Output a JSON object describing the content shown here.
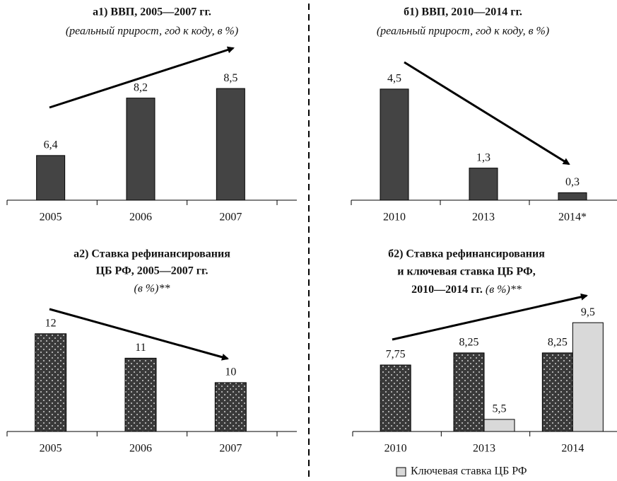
{
  "chart_data": [
    {
      "type": "bar",
      "title": [
        "а1) ВВП, 2005—2007 гг."
      ],
      "subtitle": "(реальный прирост, год к коду, в %)",
      "categories": [
        "2005",
        "2006",
        "2007"
      ],
      "values": [
        6.4,
        8.2,
        8.5
      ],
      "value_labels": [
        "6,4",
        "8,2",
        "8,5"
      ],
      "color": "#444444",
      "ylim": [
        5,
        9.5
      ]
    },
    {
      "type": "bar",
      "title": [
        "б1) ВВП, 2010—2014 гг."
      ],
      "subtitle": "(реальный прирост, год к коду, в %)",
      "categories": [
        "2010",
        "2013",
        "2014*"
      ],
      "values": [
        4.5,
        1.3,
        0.3
      ],
      "value_labels": [
        "4,5",
        "1,3",
        "0,3"
      ],
      "color": "#444444",
      "ylim": [
        0,
        5.5
      ]
    },
    {
      "type": "bar",
      "title": [
        "а2) Ставка рефинансирования",
        "ЦБ РФ, 2005—2007 гг."
      ],
      "subtitle": "(в %)**",
      "categories": [
        "2005",
        "2006",
        "2007"
      ],
      "values": [
        12,
        11,
        10
      ],
      "color": "dotted",
      "ylim": [
        8,
        13.5
      ]
    },
    {
      "type": "grouped_bar",
      "title": [
        "б2) Ставка рефинансирования",
        "и ключевая ставка ЦБ РФ,",
        "2010—2014 гг."
      ],
      "subtitle": "(в %)**",
      "categories": [
        "2010",
        "2013",
        "2014"
      ],
      "series": [
        {
          "color": "dotted",
          "values": [
            7.75,
            8.25,
            8.25
          ],
          "value_labels": [
            "7,75",
            "8,25",
            "8,25"
          ]
        },
        {
          "name": "Ключевая ставка ЦБ РФ",
          "color": "#d9d9d9",
          "values": [
            null,
            5.5,
            9.5
          ],
          "value_labels": [
            null,
            "5,5",
            "9,5"
          ]
        }
      ],
      "ylim": [
        5,
        10.5
      ]
    }
  ]
}
